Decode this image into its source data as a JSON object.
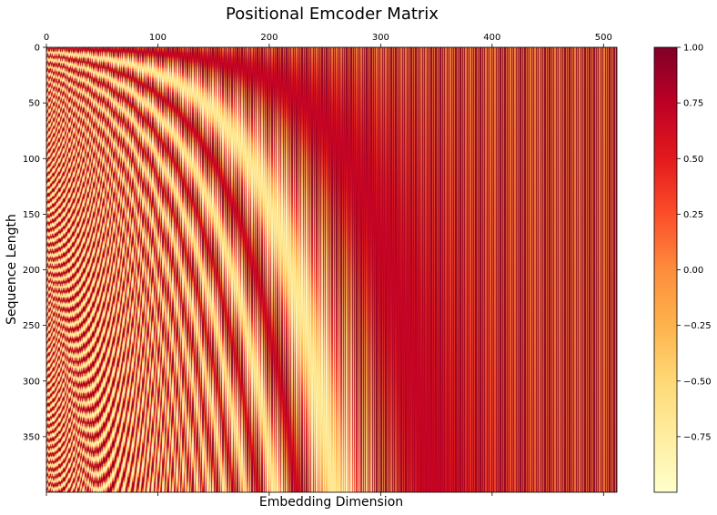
{
  "chart_data": {
    "type": "heatmap",
    "title": "Positional Emcoder Matrix",
    "xlabel": "Embedding Dimension",
    "ylabel": "Sequence Length",
    "n_positions": 400,
    "d_model": 512,
    "xlim": [
      0,
      512
    ],
    "ylim": [
      0,
      400
    ],
    "x_axis_position": "top",
    "x_ticks": [
      0,
      100,
      200,
      300,
      400,
      500
    ],
    "x_tick_labels": [
      "0",
      "100",
      "200",
      "300",
      "400",
      "500"
    ],
    "y_ticks": [
      0,
      50,
      100,
      150,
      200,
      250,
      300,
      350
    ],
    "y_tick_labels": [
      "0",
      "50",
      "100",
      "150",
      "200",
      "250",
      "300",
      "350"
    ],
    "value_range": [
      -1.0,
      1.0
    ],
    "colormap": "YlOrRd",
    "colormap_stops": [
      "#ffffcc",
      "#ffeda0",
      "#fed976",
      "#feb24c",
      "#fd8d3c",
      "#fc4e2a",
      "#e31a1c",
      "#bd0026",
      "#800026"
    ],
    "colorbar": {
      "ticks": [
        1.0,
        0.75,
        0.5,
        0.25,
        0.0,
        -0.25,
        -0.5,
        -0.75
      ],
      "tick_labels": [
        "1.00",
        "0.75",
        "0.50",
        "0.25",
        "0.00",
        "−0.25",
        "−0.50",
        "−0.75"
      ]
    },
    "grid": false
  }
}
